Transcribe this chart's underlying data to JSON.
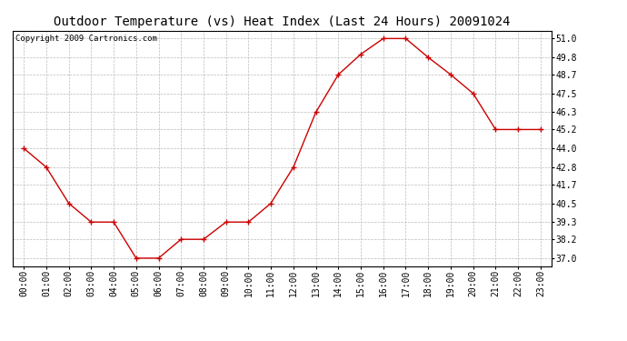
{
  "title": "Outdoor Temperature (vs) Heat Index (Last 24 Hours) 20091024",
  "copyright": "Copyright 2009 Cartronics.com",
  "x_labels": [
    "00:00",
    "01:00",
    "02:00",
    "03:00",
    "04:00",
    "05:00",
    "06:00",
    "07:00",
    "08:00",
    "09:00",
    "10:00",
    "11:00",
    "12:00",
    "13:00",
    "14:00",
    "15:00",
    "16:00",
    "17:00",
    "18:00",
    "19:00",
    "20:00",
    "21:00",
    "22:00",
    "23:00"
  ],
  "y_values": [
    44.0,
    42.8,
    40.5,
    39.3,
    39.3,
    37.0,
    37.0,
    38.2,
    38.2,
    39.3,
    39.3,
    40.5,
    42.8,
    46.3,
    48.7,
    50.0,
    51.0,
    51.0,
    49.8,
    48.7,
    47.5,
    45.2,
    45.2,
    45.2
  ],
  "yticks": [
    37.0,
    38.2,
    39.3,
    40.5,
    41.7,
    42.8,
    44.0,
    45.2,
    46.3,
    47.5,
    48.7,
    49.8,
    51.0
  ],
  "ylim": [
    36.5,
    51.5
  ],
  "line_color": "#cc0000",
  "marker": "+",
  "marker_color": "#cc0000",
  "bg_color": "#ffffff",
  "plot_bg_color": "#ffffff",
  "grid_color": "#bbbbbb",
  "title_fontsize": 10,
  "axis_fontsize": 7,
  "copyright_fontsize": 6.5
}
